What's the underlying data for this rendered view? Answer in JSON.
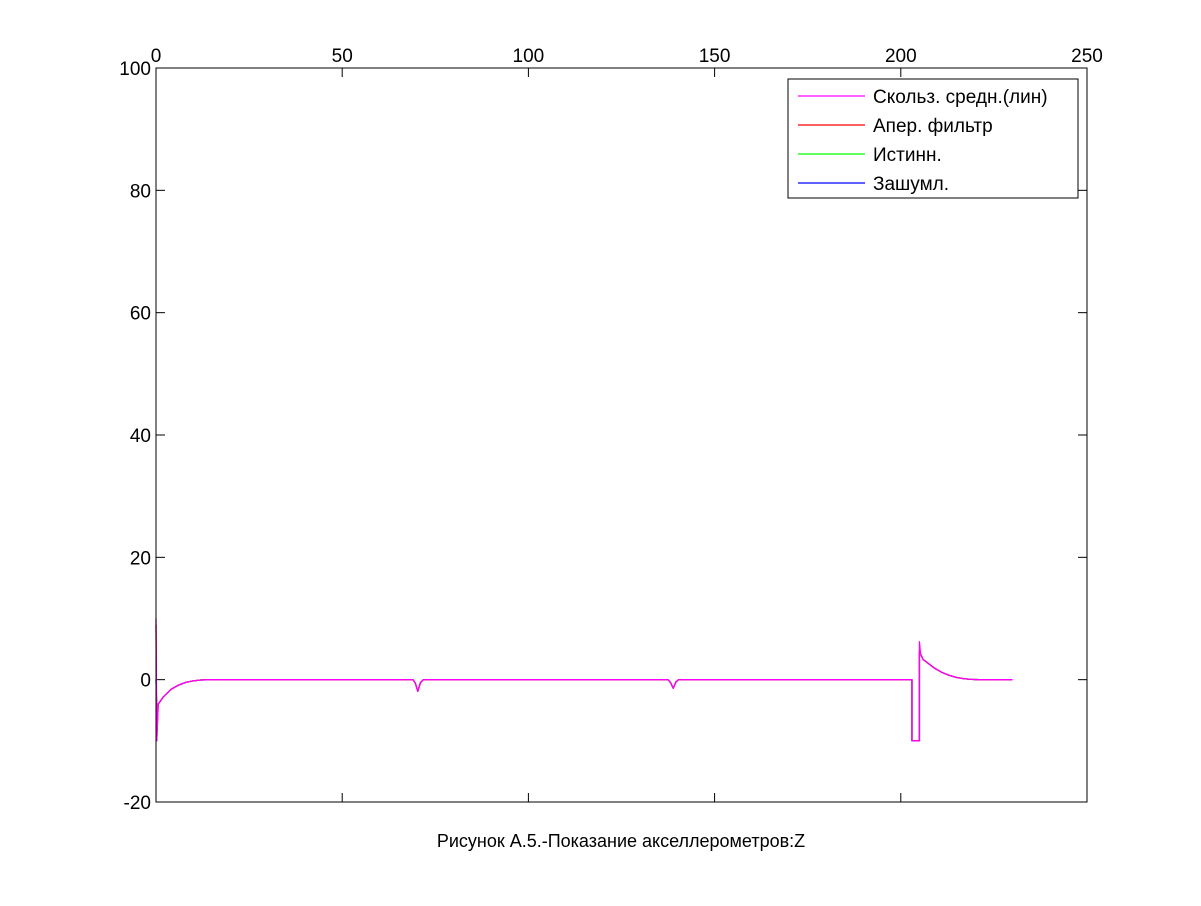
{
  "chart_data": {
    "type": "line",
    "title": "",
    "xlabel": "Рисунок А.5.-Показание акселлерометров:Z",
    "ylabel": "",
    "xlim": [
      0,
      250
    ],
    "ylim": [
      -20,
      100
    ],
    "x_ticks": [
      "0",
      "50",
      "100",
      "150",
      "200",
      "250"
    ],
    "y_ticks": [
      "-20",
      "0",
      "20",
      "40",
      "60",
      "80",
      "100"
    ],
    "x_tick_values": [
      0,
      50,
      100,
      150,
      200,
      250
    ],
    "y_tick_values": [
      -20,
      0,
      20,
      40,
      60,
      80,
      100
    ],
    "x_axis_location": "top",
    "grid": false,
    "legend_position": "top-right",
    "series": [
      {
        "name": "Скольз. средн.(лин)",
        "color": "#ff00ff",
        "points": [
          [
            0,
            10
          ],
          [
            0.2,
            -10
          ],
          [
            0.6,
            -4
          ],
          [
            2,
            -2.8
          ],
          [
            4,
            -1.6
          ],
          [
            6,
            -0.9
          ],
          [
            8,
            -0.45
          ],
          [
            10,
            -0.2
          ],
          [
            12,
            -0.05
          ],
          [
            15,
            0
          ],
          [
            69,
            0
          ],
          [
            69.6,
            -0.5
          ],
          [
            70.3,
            -1.9
          ],
          [
            71,
            -0.5
          ],
          [
            71.8,
            0
          ],
          [
            137.5,
            0
          ],
          [
            138.2,
            -0.5
          ],
          [
            138.9,
            -1.4
          ],
          [
            139.6,
            -0.4
          ],
          [
            140.3,
            0
          ],
          [
            203,
            0
          ],
          [
            203,
            -10
          ],
          [
            205,
            -10
          ],
          [
            205,
            6.2
          ],
          [
            205.3,
            4.2
          ],
          [
            206,
            3.3
          ],
          [
            207.5,
            2.6
          ],
          [
            209,
            1.9
          ],
          [
            211,
            1.2
          ],
          [
            213,
            0.7
          ],
          [
            215,
            0.35
          ],
          [
            217,
            0.15
          ],
          [
            219,
            0.05
          ],
          [
            221,
            0
          ],
          [
            230,
            0
          ]
        ]
      },
      {
        "name": "Апер. фильтр",
        "color": "#ff0000",
        "points": [
          [
            0,
            9
          ],
          [
            0.2,
            -10
          ],
          [
            0.6,
            -4
          ],
          [
            2,
            -2.8
          ],
          [
            4,
            -1.6
          ],
          [
            6,
            -0.9
          ],
          [
            8,
            -0.45
          ],
          [
            10,
            -0.2
          ],
          [
            12,
            -0.05
          ],
          [
            15,
            0
          ],
          [
            69,
            0
          ],
          [
            69.6,
            -0.5
          ],
          [
            70.3,
            -1.9
          ],
          [
            71,
            -0.5
          ],
          [
            71.8,
            0
          ],
          [
            137.5,
            0
          ],
          [
            138.2,
            -0.5
          ],
          [
            138.9,
            -1.4
          ],
          [
            139.6,
            -0.4
          ],
          [
            140.3,
            0
          ],
          [
            203,
            0
          ],
          [
            203,
            -10
          ],
          [
            205,
            -10
          ],
          [
            205,
            4.8
          ],
          [
            205.3,
            4.2
          ],
          [
            206,
            3.3
          ],
          [
            207.5,
            2.6
          ],
          [
            209,
            1.9
          ],
          [
            211,
            1.2
          ],
          [
            213,
            0.7
          ],
          [
            215,
            0.35
          ],
          [
            217,
            0.15
          ],
          [
            219,
            0.05
          ],
          [
            221,
            0
          ],
          [
            230,
            0
          ]
        ]
      },
      {
        "name": "Истинн.",
        "color": "#00ff00",
        "points": [
          [
            0,
            0
          ],
          [
            0.2,
            -4.5
          ],
          [
            0.6,
            -4
          ],
          [
            2,
            -2.8
          ],
          [
            4,
            -1.6
          ],
          [
            6,
            -0.9
          ],
          [
            8,
            -0.45
          ],
          [
            10,
            -0.2
          ],
          [
            12,
            -0.05
          ],
          [
            15,
            0
          ],
          [
            69,
            0
          ],
          [
            69.6,
            -0.5
          ],
          [
            70.3,
            -1.9
          ],
          [
            71,
            -0.5
          ],
          [
            71.8,
            0
          ],
          [
            137.5,
            0
          ],
          [
            138.2,
            -0.5
          ],
          [
            138.9,
            -1.4
          ],
          [
            139.6,
            -0.4
          ],
          [
            140.3,
            0
          ],
          [
            203,
            0
          ],
          [
            203,
            -10
          ],
          [
            205,
            -10
          ],
          [
            205,
            4.5
          ],
          [
            205.3,
            4.2
          ],
          [
            206,
            3.3
          ],
          [
            207.5,
            2.6
          ],
          [
            209,
            1.9
          ],
          [
            211,
            1.2
          ],
          [
            213,
            0.7
          ],
          [
            215,
            0.35
          ],
          [
            217,
            0.15
          ],
          [
            219,
            0.05
          ],
          [
            221,
            0
          ],
          [
            230,
            0
          ]
        ]
      },
      {
        "name": "Зашумл.",
        "color": "#0000ff",
        "points": [
          [
            0,
            0
          ],
          [
            0.2,
            -4.5
          ],
          [
            0.6,
            -4
          ],
          [
            2,
            -2.8
          ],
          [
            4,
            -1.6
          ],
          [
            6,
            -0.9
          ],
          [
            8,
            -0.45
          ],
          [
            10,
            -0.2
          ],
          [
            12,
            -0.05
          ],
          [
            15,
            0
          ],
          [
            69,
            0
          ],
          [
            69.6,
            -0.5
          ],
          [
            70.3,
            -1.9
          ],
          [
            71,
            -0.5
          ],
          [
            71.8,
            0
          ],
          [
            137.5,
            0
          ],
          [
            138.2,
            -0.5
          ],
          [
            138.9,
            -1.4
          ],
          [
            139.6,
            -0.4
          ],
          [
            140.3,
            0
          ],
          [
            203,
            0
          ],
          [
            203,
            -10
          ],
          [
            205,
            -10
          ],
          [
            205,
            4.5
          ],
          [
            205.3,
            4.2
          ],
          [
            206,
            3.3
          ],
          [
            207.5,
            2.6
          ],
          [
            209,
            1.9
          ],
          [
            211,
            1.2
          ],
          [
            213,
            0.7
          ],
          [
            215,
            0.35
          ],
          [
            217,
            0.15
          ],
          [
            219,
            0.05
          ],
          [
            221,
            0
          ],
          [
            230,
            0
          ]
        ]
      }
    ]
  }
}
